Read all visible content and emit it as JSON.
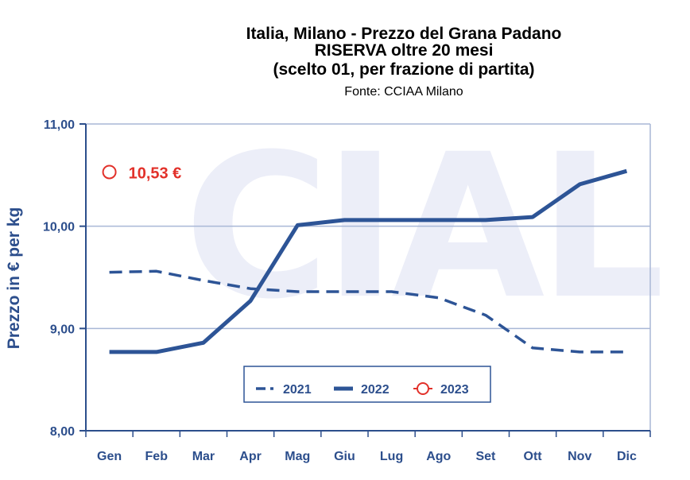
{
  "colors": {
    "series": "#2d5496",
    "axis": "#2c4e8c",
    "grid": "#a9b7d6",
    "highlight": "#e2312a",
    "watermark": "#eceef8"
  },
  "chart_data": {
    "type": "line",
    "title_lines": [
      "Italia, Milano - Prezzo del Grana Padano",
      "RISERVA oltre 20 mesi",
      "(scelto 01, per frazione di partita)"
    ],
    "subtitle": "Fonte: CCIAA Milano",
    "ylabel": "Prezzo in € per kg",
    "xlabel": "",
    "categories": [
      "Gen",
      "Feb",
      "Mar",
      "Apr",
      "Mag",
      "Giu",
      "Lug",
      "Ago",
      "Set",
      "Ott",
      "Nov",
      "Dic"
    ],
    "ylim": [
      8,
      11
    ],
    "yticks": [
      8,
      9,
      10,
      11
    ],
    "ytick_labels": [
      "8,00",
      "9,00",
      "10,00",
      "11,00"
    ],
    "grid": true,
    "legend_position": "bottom-center",
    "watermark": "CIAL",
    "series": [
      {
        "name": "2021",
        "style": "dashed",
        "values": [
          9.55,
          9.56,
          9.47,
          9.39,
          9.36,
          9.36,
          9.36,
          9.3,
          9.13,
          8.81,
          8.77,
          8.77
        ]
      },
      {
        "name": "2022",
        "style": "solid",
        "values": [
          8.77,
          8.77,
          8.86,
          9.27,
          10.01,
          10.06,
          10.06,
          10.06,
          10.06,
          10.09,
          10.41,
          10.54
        ]
      },
      {
        "name": "2023",
        "style": "marker",
        "values": [
          10.53,
          null,
          null,
          null,
          null,
          null,
          null,
          null,
          null,
          null,
          null,
          null
        ]
      }
    ],
    "annotations": [
      {
        "text": "10,53 €",
        "series": "2023",
        "category": "Gen"
      }
    ]
  }
}
